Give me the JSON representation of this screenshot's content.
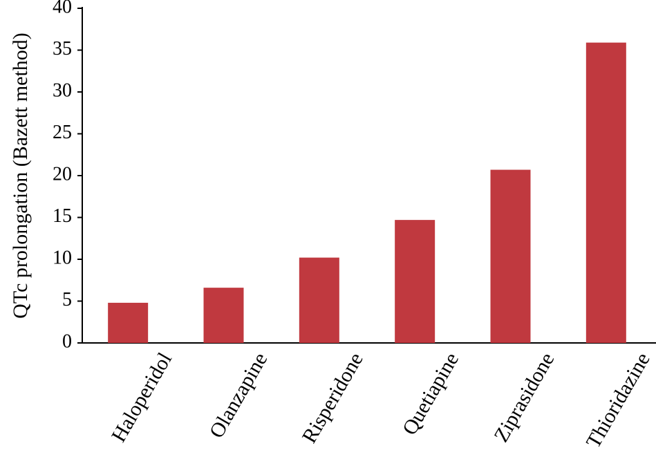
{
  "chart_data": {
    "type": "bar",
    "y_label": "QTc prolongation (Bazett method)",
    "categories": [
      "Haloperidol",
      "Olanzapine",
      "Risperidone",
      "Quetiapine",
      "Ziprasidone",
      "Thioridazine"
    ],
    "values": [
      4.8,
      6.6,
      10.2,
      14.7,
      20.7,
      35.9
    ],
    "color": "#c0393f",
    "ylim": [
      0,
      40
    ],
    "yticks": [
      0,
      5,
      10,
      15,
      20,
      25,
      30,
      35,
      40
    ],
    "grid": false
  }
}
